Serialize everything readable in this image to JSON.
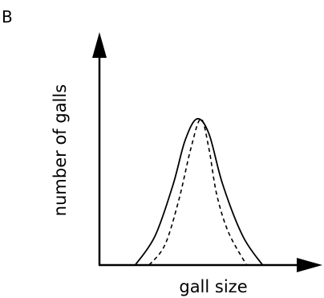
{
  "panel_label": "B",
  "chart_data": {
    "type": "line",
    "title": "",
    "xlabel": "gall size",
    "ylabel": "number of galls",
    "x_ticks": [],
    "y_ticks": [],
    "grid": false,
    "legend": "none",
    "xlim": [
      0,
      100
    ],
    "ylim": [
      0,
      100
    ],
    "series": [
      {
        "line_style": "solid",
        "color": "#000000",
        "points": [
          [
            18,
            0
          ],
          [
            28,
            20
          ],
          [
            37,
            55
          ],
          [
            43,
            85
          ],
          [
            49,
            100
          ],
          [
            55,
            90
          ],
          [
            62,
            55
          ],
          [
            72,
            20
          ],
          [
            82,
            0
          ]
        ]
      },
      {
        "line_style": "dashed",
        "color": "#000000",
        "points": [
          [
            25,
            0
          ],
          [
            33,
            14
          ],
          [
            40,
            45
          ],
          [
            46,
            80
          ],
          [
            51,
            100
          ],
          [
            55,
            80
          ],
          [
            59,
            48
          ],
          [
            65,
            22
          ],
          [
            74,
            0
          ]
        ]
      }
    ]
  }
}
